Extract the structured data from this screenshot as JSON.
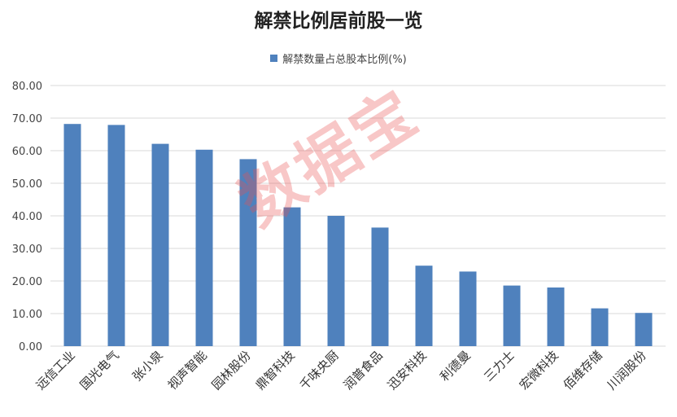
{
  "colors": {
    "bar": "#4f81bd",
    "grid": "#d9d9d9",
    "axis_text": "#444444"
  },
  "watermark": "数据宝",
  "chart_data": {
    "type": "bar",
    "title": "解禁比例居前股一览",
    "legend": "top-center",
    "grid": true,
    "ylim": [
      0,
      80
    ],
    "yticks": [
      "0.00",
      "10.00",
      "20.00",
      "30.00",
      "40.00",
      "50.00",
      "60.00",
      "70.00",
      "80.00"
    ],
    "categories": [
      "远信工业",
      "国光电气",
      "张小泉",
      "视声智能",
      "园林股份",
      "鼎智科技",
      "千味央厨",
      "润普食品",
      "迅安科技",
      "利德曼",
      "三力士",
      "宏微科技",
      "佰维存储",
      "川润股份"
    ],
    "series": [
      {
        "name": "解禁数量占总股本比例(%)",
        "values": [
          68.2,
          67.9,
          62.1,
          60.3,
          57.4,
          42.6,
          40.0,
          36.4,
          24.7,
          22.9,
          18.6,
          18.0,
          11.6,
          10.2
        ]
      }
    ]
  }
}
